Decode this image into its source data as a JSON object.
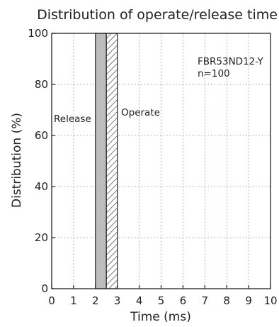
{
  "chart_data": {
    "type": "bar",
    "title": "Distribution of operate/release time",
    "xlabel": "Time (ms)",
    "ylabel": "Distribution (%)",
    "xlim": [
      0,
      10
    ],
    "ylim": [
      0,
      100
    ],
    "x_ticks": [
      "0",
      "1",
      "2",
      "3",
      "4",
      "5",
      "6",
      "7",
      "8",
      "9",
      "10"
    ],
    "y_ticks": [
      "0",
      "20",
      "40",
      "60",
      "80",
      "100"
    ],
    "grid": true,
    "series": [
      {
        "name": "Release",
        "x_start": 2.0,
        "x_end": 2.5,
        "value": 100,
        "fill": "#bdbdbd",
        "pattern": "solid"
      },
      {
        "name": "Operate",
        "x_start": 2.5,
        "x_end": 3.0,
        "value": 100,
        "fill": "#ffffff",
        "pattern": "hatched"
      }
    ],
    "annotations": {
      "model": "FBR53ND12-Y",
      "sample": "n=100"
    }
  }
}
